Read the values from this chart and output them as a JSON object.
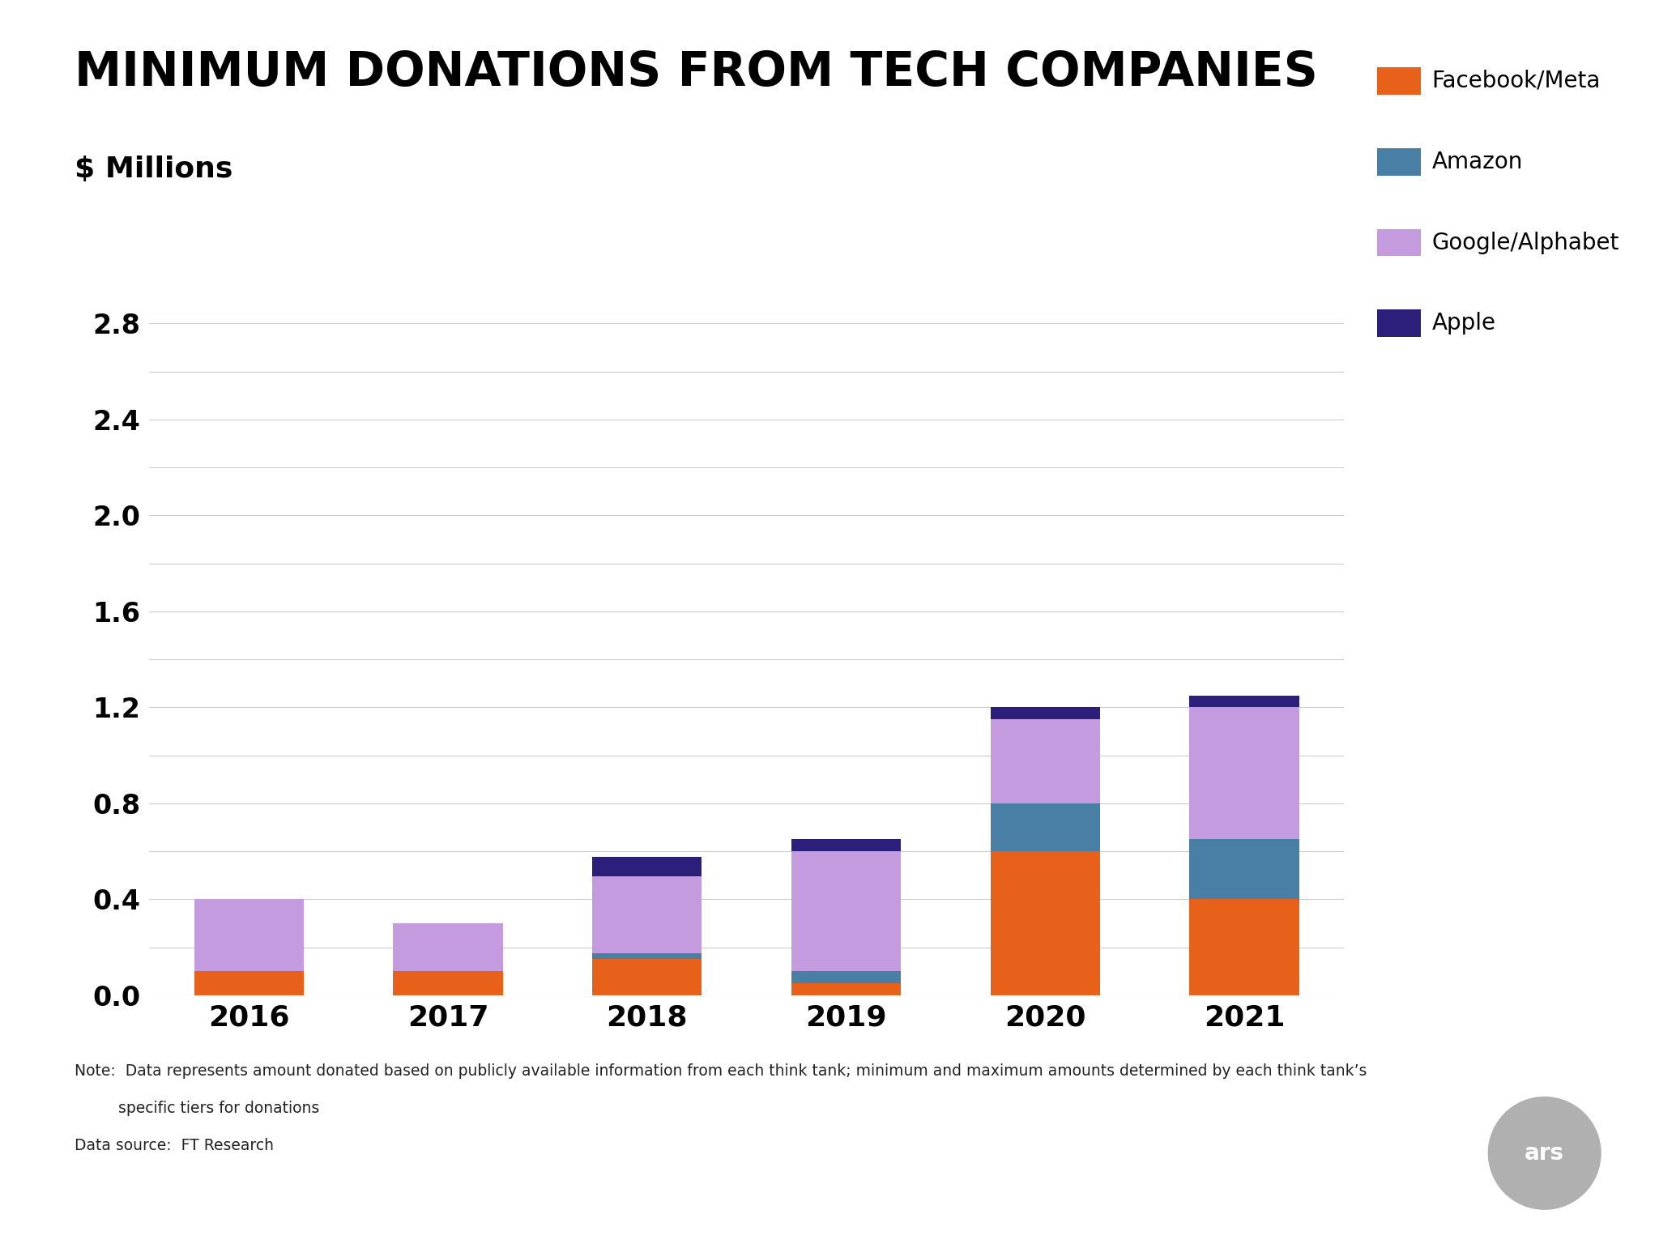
{
  "title": "MINIMUM DONATIONS FROM TECH COMPANIES",
  "subtitle": "$ Millions",
  "years": [
    "2016",
    "2017",
    "2018",
    "2019",
    "2020",
    "2021"
  ],
  "facebook": [
    0.1,
    0.1,
    0.15,
    0.05,
    0.6,
    0.4
  ],
  "amazon": [
    0.0,
    0.0,
    0.025,
    0.05,
    0.2,
    0.25
  ],
  "google": [
    0.3,
    0.2,
    0.32,
    0.5,
    0.35,
    0.55
  ],
  "apple": [
    0.0,
    0.0,
    0.08,
    0.05,
    0.05,
    0.05
  ],
  "colors": {
    "facebook": "#E8611A",
    "amazon": "#4A7FA5",
    "google": "#C59BE0",
    "apple": "#2C1F7B"
  },
  "legend_labels": [
    "Facebook/Meta",
    "Amazon",
    "Google/Alphabet",
    "Apple"
  ],
  "ylim": [
    0,
    2.8
  ],
  "yticks": [
    0.0,
    0.4,
    0.8,
    1.2,
    1.6,
    2.0,
    2.4,
    2.8
  ],
  "minor_yticks": [
    0.2,
    0.6,
    1.0,
    1.4,
    1.8,
    2.2,
    2.6
  ],
  "note_line1": "Note:  Data represents amount donated based on publicly available information from each think tank; minimum and maximum amounts determined by each think tank’s",
  "note_line2": "         specific tiers for donations",
  "datasource": "Data source:  FT Research",
  "background_color": "#FFFFFF",
  "grid_color": "#CCCCCC",
  "bar_width": 0.55
}
